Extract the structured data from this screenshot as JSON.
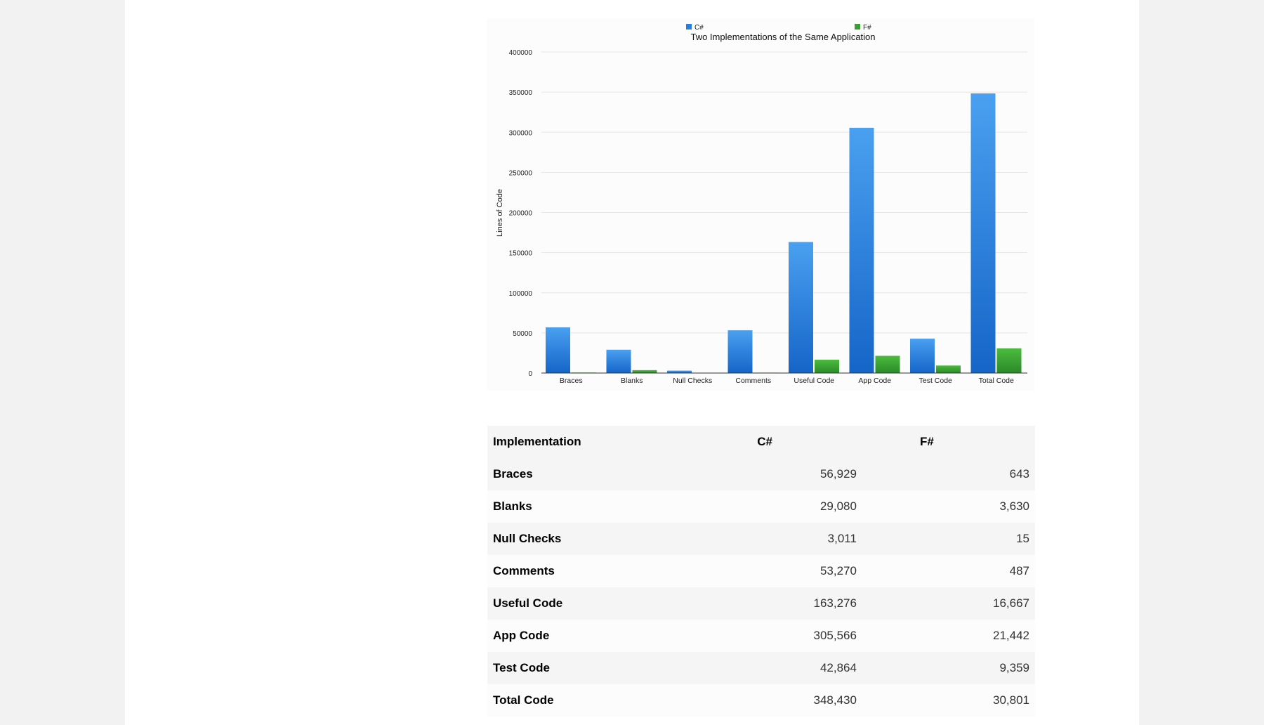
{
  "chart_data": {
    "type": "bar",
    "title": "Two Implementations of the Same Application",
    "ylabel": "Lines of Code",
    "xlabel": "",
    "categories": [
      "Braces",
      "Blanks",
      "Null Checks",
      "Comments",
      "Useful Code",
      "App Code",
      "Test Code",
      "Total Code"
    ],
    "series": [
      {
        "name": "C#",
        "color": "#2b7fdc",
        "values": [
          56929,
          29080,
          3011,
          53270,
          163276,
          305566,
          42864,
          348430
        ]
      },
      {
        "name": "F#",
        "color": "#3a9e35",
        "values": [
          643,
          3630,
          15,
          487,
          16667,
          21442,
          9359,
          30801
        ]
      }
    ],
    "ylim": [
      0,
      400000
    ],
    "yticks": [
      0,
      50000,
      100000,
      150000,
      200000,
      250000,
      300000,
      350000,
      400000
    ],
    "grid": true,
    "legend": "top-center"
  },
  "table": {
    "headers": [
      "Implementation",
      "C#",
      "F#"
    ],
    "rows": [
      {
        "label": "Braces",
        "cs": "56,929",
        "fs": "643"
      },
      {
        "label": "Blanks",
        "cs": "29,080",
        "fs": "3,630"
      },
      {
        "label": "Null Checks",
        "cs": "3,011",
        "fs": "15"
      },
      {
        "label": "Comments",
        "cs": "53,270",
        "fs": "487"
      },
      {
        "label": "Useful Code",
        "cs": "163,276",
        "fs": "16,667"
      },
      {
        "label": "App Code",
        "cs": "305,566",
        "fs": "21,442"
      },
      {
        "label": "Test Code",
        "cs": "42,864",
        "fs": "9,359"
      },
      {
        "label": "Total Code",
        "cs": "348,430",
        "fs": "30,801"
      }
    ]
  }
}
